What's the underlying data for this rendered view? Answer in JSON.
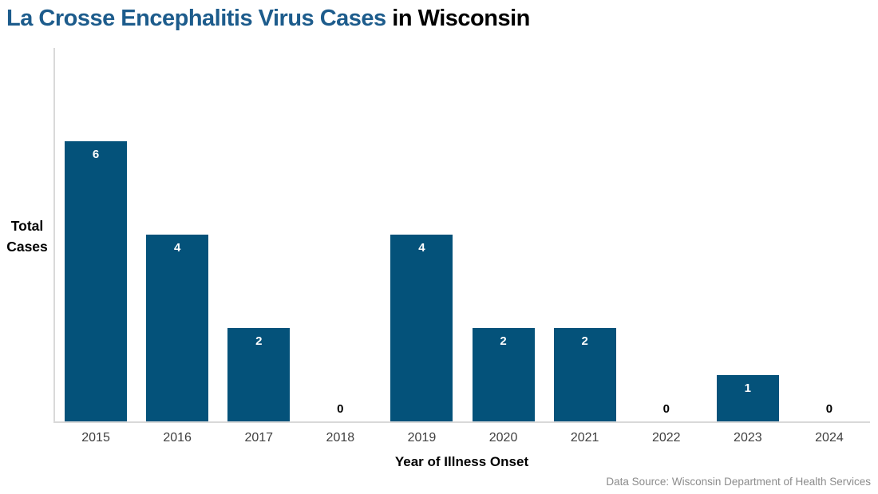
{
  "title": {
    "highlight": "La Crosse Encephalitis Virus Cases",
    "rest": " in Wisconsin"
  },
  "y_axis_label": {
    "line1": "Total",
    "line2": "Cases"
  },
  "x_axis_title": "Year of Illness Onset",
  "source_note": "Data Source: Wisconsin Department of Health Services",
  "colors": {
    "bar": "#04527a",
    "title_highlight": "#1d5c8c",
    "title_rest": "#000000",
    "axis_line": "#d9d9d9",
    "bar_value_label": "#ffffff",
    "zero_value_label": "#000000",
    "tick_label": "#3f3f3f",
    "source_note": "#8c8c8c"
  },
  "chart_data": {
    "type": "bar",
    "title": "La Crosse Encephalitis Virus Cases in Wisconsin",
    "categories": [
      "2015",
      "2016",
      "2017",
      "2018",
      "2019",
      "2020",
      "2021",
      "2022",
      "2023",
      "2024"
    ],
    "values": [
      6,
      4,
      2,
      0,
      4,
      2,
      2,
      0,
      1,
      0
    ],
    "xlabel": "Year of Illness Onset",
    "ylabel": "Total Cases",
    "ylim": [
      0,
      8
    ],
    "grid": false,
    "legend": false,
    "data_labels": true,
    "zero_labels_shown": true
  }
}
